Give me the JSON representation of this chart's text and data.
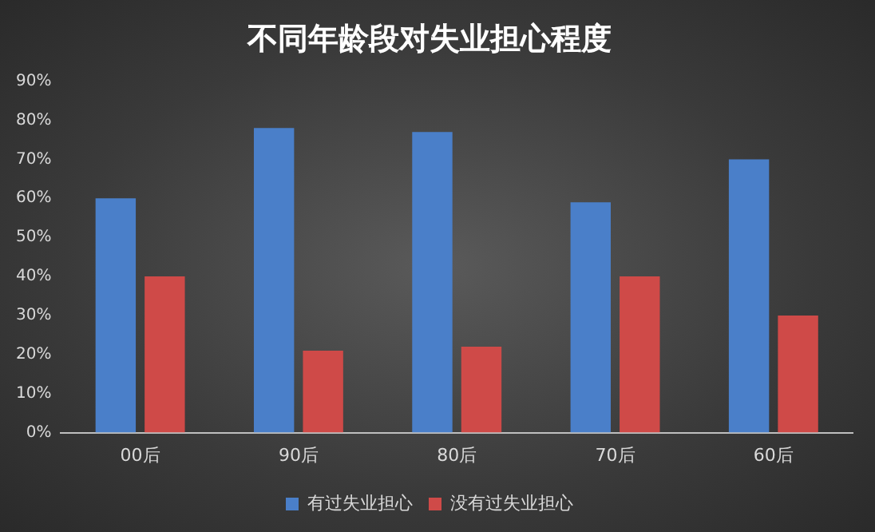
{
  "chart_data": {
    "type": "bar",
    "title": "不同年龄段对失业担心程度",
    "categories": [
      "00后",
      "90后",
      "80后",
      "70后",
      "60后"
    ],
    "series": [
      {
        "name": "有过失业担心",
        "color": "#4a7fc9",
        "values": [
          60,
          78,
          77,
          59,
          70
        ]
      },
      {
        "name": "没有过失业担心",
        "color": "#cf4a48",
        "values": [
          40,
          21,
          22,
          40,
          30
        ]
      }
    ],
    "ylim": [
      0,
      90
    ],
    "yticks": [
      {
        "value": 0,
        "label": "0%"
      },
      {
        "value": 10,
        "label": "10%"
      },
      {
        "value": 20,
        "label": "20%"
      },
      {
        "value": 30,
        "label": "30%"
      },
      {
        "value": 40,
        "label": "40%"
      },
      {
        "value": 50,
        "label": "50%"
      },
      {
        "value": 60,
        "label": "60%"
      },
      {
        "value": 70,
        "label": "70%"
      },
      {
        "value": 80,
        "label": "80%"
      },
      {
        "value": 90,
        "label": "90%"
      }
    ],
    "grid": false,
    "legend": "bottom"
  }
}
